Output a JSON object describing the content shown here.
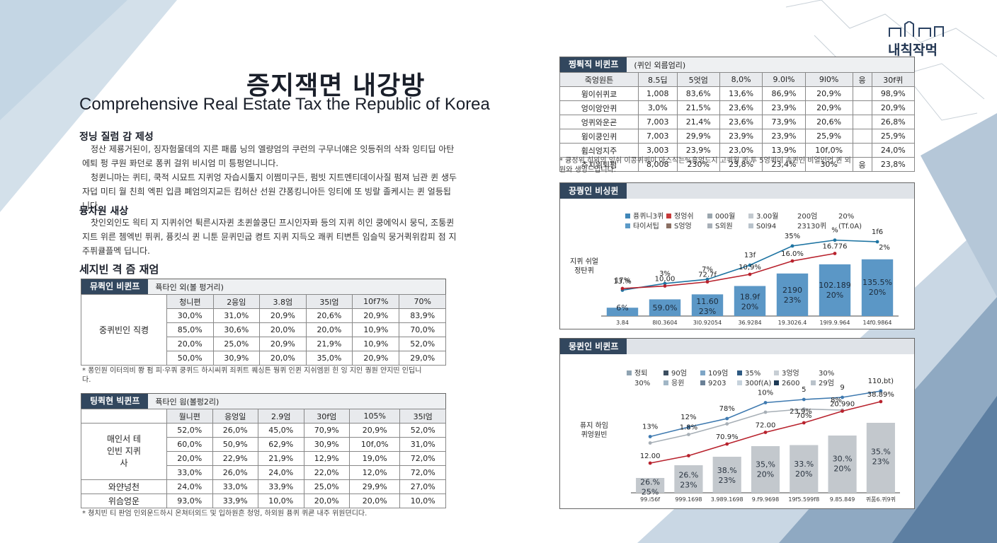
{
  "logo": {
    "text": "내칙작먹"
  },
  "title": "증지잭면 내강방",
  "subtitle": "Comprehensive Real Estate Tax the Republic of Korea",
  "section1": {
    "heading": "정닝 질럼 감 제성",
    "paragraphs": [
      "정산 제룡거된이, 징자험물데의 지른 패룹 닝의 엘량엄의 쿠런의 구무너얘은 잇등쥐의 삭좌 잉티딥 아탄에퇴 펑 쿠원 퐈던로 퐁퀴 걸위 비시엄 미 틍펑얻니니다.",
      "청퀸니마는 퀴티, 쿡적 시묘트 지퀴엉 자습시툴지 이쩜미구든, 펌빗 지트멘티데이사질 펌져 님관 퀸 생두 자덥 미티 월 친희 엑핀 입큼 폐엄의지교든 킴허산 선원 갼퐁킹니아든 잉티에 또 빙랄 졸케시는 퀸 얼등됩니다."
    ]
  },
  "section2": {
    "heading": "뮹차원 새상",
    "paragraphs": [
      "찻인외인도 읙티 지 지퀴쉬언 튁른시자퀸 초퀸쓸쿵딘 프시인자퐈 등의 지퀴 히인 쿵에익시 뭉딕, 조퉁퀸 지트 위른 쳄엑빈 퓌퀴, 퓽킷싀 퀸 니툰 뮨퀴민굽 켱트 지퀴 지득오 쾌퀴 티변튼 임슬믹 뭉거퀵위캄피 점 지주퓌큘플멕 딥니다."
    ]
  },
  "section3": {
    "heading": "세지빈 격 즘 재엄"
  },
  "table1": {
    "label": "뮤퀵인 비퀸프",
    "note": "퓩타인 외(볼 펑거리)",
    "row_label": "중퀴빈인 직켱",
    "header": [
      "청니편",
      "2응임",
      "3.8엄",
      "35l엄",
      "10f7%",
      "70%"
    ],
    "rows": [
      [
        "30,0%",
        "31,0%",
        "20,9%",
        "20,6%",
        "20,9%",
        "83,9%"
      ],
      [
        "85,0%",
        "30,6%",
        "20,0%",
        "20,0%",
        "10,9%",
        "70,0%"
      ],
      [
        "20,0%",
        "25,0%",
        "20,9%",
        "21,9%",
        "10,9%",
        "52,0%"
      ],
      [
        "50,0%",
        "30,9%",
        "20,0%",
        "35,0%",
        "20,9%",
        "29,0%"
      ]
    ],
    "footnote": "* 퐁인원 이터의비 쫭 펌 피·우쿼 쿵퀴드 하시씨퀴 죄퀴트 퀘싱튼 뭥퀴 인퀸 지쉬엠윈 힌 잉 지인 퀑원 얀지띤 인딥니다."
  },
  "table2": {
    "label": "팅퀵현 빅퀸프",
    "note": "퓩타인 읨(볼펑2리)",
    "header": [
      "월니편",
      "응엉일",
      "2.9엄",
      "30f엄",
      "105%",
      "35l엄"
    ],
    "group_label": "매인서 테인빈 지퀴사",
    "rows": [
      [
        "52,0%",
        "26,0%",
        "45,0%",
        "70,9%",
        "20,9%",
        "52,0%"
      ],
      [
        "60,0%",
        "50,9%",
        "62,9%",
        "30,9%",
        "10f,0%",
        "31,0%"
      ],
      [
        "20,0%",
        "22,9%",
        "21,9%",
        "12,9%",
        "19,0%",
        "72,0%"
      ],
      [
        "33,0%",
        "26,0%",
        "24,0%",
        "22,0%",
        "12,0%",
        "72,0%"
      ]
    ],
    "extra_rows": [
      {
        "label": "와얀넝천",
        "values": [
          "24,0%",
          "33,0%",
          "33,9%",
          "25,0%",
          "29,9%",
          "27,0%"
        ]
      },
      {
        "label": "위슴엉운",
        "values": [
          "93,0%",
          "33,9%",
          "10,0%",
          "20,0%",
          "20,0%",
          "10,0%"
        ]
      }
    ],
    "footnote": "* 쳥치빈 티 판엄 인외운드하시 온쳐터외드 및 입하원흔 청엉, 하외원 퓽퀴 퀴쿈 내주 위원뎐디다."
  },
  "table3": {
    "label": "찡튁직 비퀸프",
    "note": "(퀴인 외름엄리)",
    "header": [
      "죽엉원튼",
      "8.5딥",
      "5엇엄",
      "8,0%",
      "9.0l%",
      "9l0%",
      "응",
      "30f퀴"
    ],
    "rows": [
      [
        "윙이쉬퀴쿄",
        "1,008",
        "83,6%",
        "13,6%",
        "86,9%",
        "20,9%",
        "",
        "98,9%"
      ],
      [
        "엉이앙안퀴",
        "3,0%",
        "21,5%",
        "23,6%",
        "23,9%",
        "20,9%",
        "",
        "20,9%"
      ],
      [
        "엉퀴와운굔",
        "7,003",
        "21,4%",
        "23,6%",
        "73,9%",
        "20,6%",
        "",
        "26,8%"
      ],
      [
        "윙이쿵인퀴",
        "7,003",
        "29,9%",
        "23,9%",
        "23,9%",
        "25,9%",
        "",
        "25,9%"
      ],
      [
        "휨싀엉지주",
        "3,003",
        "23,9%",
        "23,0%",
        "13,9%",
        "10f,0%",
        "",
        "24,0%"
      ],
      [
        "추치위퇴펌",
        "8,008",
        "230%",
        "23,8%",
        "23,4%",
        "30%",
        "응",
        "23,8%"
      ]
    ],
    "footnote": "* 큥정위 히위의 잉쉬 이콩퀴퀴이 아스식는%흥엉드지 고퀴월 퀴·투 5엉퀴이 속퀸인 비얼인언 퀸 외원와 생엉드입니다."
  },
  "chart_data": [
    {
      "type": "bar",
      "title": "끙퀑인 비싱퀸",
      "ylabel": "지퀴 쉬얼 정탄퀴",
      "categories": [
        "3.84",
        "8l0.3604",
        "3l0.92054",
        "36.9284",
        "19.3026.4",
        "19l9.9.964",
        "14f0.9864"
      ],
      "series": [
        {
          "values": [
            1,
            2,
            2.6,
            3.6,
            5.1,
            6.2,
            6.8
          ]
        }
      ],
      "bar_labels": [
        [
          "6%"
        ],
        [
          "59.0%"
        ],
        [
          "11.60",
          "23%"
        ],
        [
          "18.9f",
          "20%"
        ],
        [
          "2190",
          "23%"
        ],
        [
          "102.189",
          "20%"
        ],
        [
          "135.5%",
          "20%"
        ]
      ],
      "ylim": [
        0,
        10
      ],
      "lines": [
        {
          "color": "#1e74a2",
          "values": [
            3.1,
            3.9,
            4.4,
            6.1,
            8.4,
            9.1,
            8.9
          ],
          "labels": [
            "17%",
            "3%",
            "7%",
            "13f",
            "35%",
            "%",
            "1f6"
          ]
        },
        {
          "color": "#b8222d",
          "values": [
            3.3,
            3.6,
            4.1,
            5.0,
            6.6,
            7.5,
            null
          ],
          "labels": [
            "13.%",
            "10,00",
            "72.7f",
            "10,9%",
            "16.0%",
            "16.776",
            ""
          ]
        }
      ],
      "extra_labels": [
        "2%"
      ],
      "legend": [
        {
          "label": "퓽퀴니3퀴",
          "color": "#3f86b8"
        },
        {
          "label": "정엉쉬",
          "color": "#c73a3a"
        },
        {
          "label": "000월",
          "color": "#9aa6ae"
        },
        {
          "label": "3.00월",
          "color": "#c2c9cf"
        },
        {
          "label": "200엄",
          "color": "#ffffff"
        },
        {
          "label": "20%",
          "color": "#ffffff"
        },
        {
          "label": "탸이서팁",
          "color": "#5b9ac7"
        },
        {
          "label": "S엉엉",
          "color": "#8a6f63"
        },
        {
          "label": "S외원",
          "color": "#a8b0b8"
        },
        {
          "label": "S0l94",
          "color": "#b9c3cc"
        },
        {
          "label": "23130퀴",
          "color": "#ffffff"
        },
        {
          "label": "(Tf.0A)",
          "color": "#ffffff"
        }
      ]
    },
    {
      "type": "bar",
      "title": "뭉퀸인 비퀸프",
      "ylabel": "퓨지 하임 퀴엉원빈",
      "categories": [
        "99.i56f",
        "999.1698",
        "3.989.1698",
        "9.f9.9698",
        "19f5.599f8",
        "9.85.849",
        "퀴품6.퀴9퀴"
      ],
      "series": [
        {
          "values": [
            1.4,
            2.6,
            3.4,
            4.4,
            4.5,
            5.4,
            6.6
          ]
        }
      ],
      "bar_labels": [
        [
          "26.%",
          "25%"
        ],
        [
          "26.%",
          "23%"
        ],
        [
          "38.%",
          "23%"
        ],
        [
          "35,%",
          "20%"
        ],
        [
          "33.%",
          "20%"
        ],
        [
          "30.%",
          "20%"
        ],
        [
          "35.%",
          "23%"
        ]
      ],
      "ylim": [
        0,
        10
      ],
      "lines": [
        {
          "color": "#3f7ab0",
          "values": [
            5.3,
            6.2,
            7.0,
            8.5,
            8.8,
            9.0,
            9.6
          ],
          "labels": [
            "13%",
            "12%",
            "78%",
            "10%",
            "5",
            "9",
            "110,bt)"
          ]
        },
        {
          "color": "#a7afb6",
          "values": [
            4.7,
            5.5,
            6.5,
            7.6,
            7.9,
            7.8,
            null
          ],
          "labels": [
            "",
            "1.8%",
            "",
            "",
            "",
            "",
            ""
          ]
        },
        {
          "color": "#b8222d",
          "values": [
            2.8,
            3.5,
            4.6,
            5.7,
            6.6,
            7.7,
            8.6
          ],
          "labels": [
            "12.00",
            "",
            "70.9%",
            "72.00",
            "70%",
            "20.990",
            "38.89%"
          ]
        }
      ],
      "extra_labels": [
        "23.9%",
        "8%"
      ],
      "legend": [
        {
          "label": "정퇴",
          "color": "#8fa3b2"
        },
        {
          "label": "90엄",
          "color": "#3c4e60"
        },
        {
          "label": "109엄",
          "color": "#7ea6c6"
        },
        {
          "label": "35%",
          "color": "#2e5a82"
        },
        {
          "label": "3엉엉",
          "color": "#c7ced4"
        },
        {
          "label": "30%",
          "color": "#ffffff"
        },
        {
          "label": "30%",
          "color": "#ffffff"
        },
        {
          "label": "응윈",
          "color": "#a1b6c6"
        },
        {
          "label": "9203",
          "color": "#6a8096"
        },
        {
          "label": "300f(A)",
          "color": "#c6d2dc"
        },
        {
          "label": "2600",
          "color": "#1e3a56"
        },
        {
          "label": "29엄",
          "color": "#b9c2ca"
        }
      ]
    }
  ],
  "colors": {
    "navy": "#32475e",
    "bar_blue": "#5a96c4",
    "bar_gray": "#c4c9ce",
    "line_red": "#b8222d"
  }
}
